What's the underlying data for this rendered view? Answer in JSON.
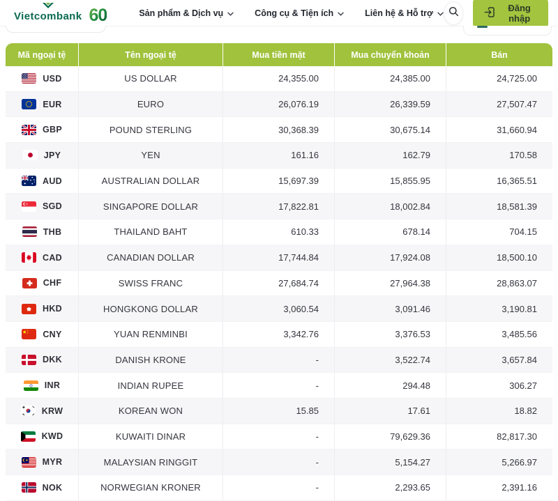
{
  "header": {
    "logo_text": "Vietcombank",
    "anniversary_badge": "60",
    "nav_items": [
      {
        "label": "Sản phẩm & Dịch vụ"
      },
      {
        "label": "Công cụ & Tiện ích"
      },
      {
        "label": "Liên hệ & Hỗ trợ"
      }
    ],
    "login_label": "Đăng nhập"
  },
  "colors": {
    "brand_green": "#a0c23c",
    "button_green": "#a3c43e",
    "logo_green": "#0b6a4f",
    "accent_teal": "#2e6b5f",
    "row_alt": "#f6f6f8"
  },
  "table": {
    "columns": [
      "Mã ngoại tệ",
      "Tên ngoại tệ",
      "Mua tiền mặt",
      "Mua chuyển khoản",
      "Bán"
    ],
    "rows": [
      {
        "code": "USD",
        "flag": "us-flag",
        "name": "US DOLLAR",
        "cash": "24,355.00",
        "transfer": "24,385.00",
        "sell": "24,725.00"
      },
      {
        "code": "EUR",
        "flag": "eu-flag",
        "name": "EURO",
        "cash": "26,076.19",
        "transfer": "26,339.59",
        "sell": "27,507.47"
      },
      {
        "code": "GBP",
        "flag": "gb-flag",
        "name": "POUND STERLING",
        "cash": "30,368.39",
        "transfer": "30,675.14",
        "sell": "31,660.94"
      },
      {
        "code": "JPY",
        "flag": "jp-flag",
        "name": "YEN",
        "cash": "161.16",
        "transfer": "162.79",
        "sell": "170.58"
      },
      {
        "code": "AUD",
        "flag": "au-flag",
        "name": "AUSTRALIAN DOLLAR",
        "cash": "15,697.39",
        "transfer": "15,855.95",
        "sell": "16,365.51"
      },
      {
        "code": "SGD",
        "flag": "sg-flag",
        "name": "SINGAPORE DOLLAR",
        "cash": "17,822.81",
        "transfer": "18,002.84",
        "sell": "18,581.39"
      },
      {
        "code": "THB",
        "flag": "th-flag",
        "name": "THAILAND BAHT",
        "cash": "610.33",
        "transfer": "678.14",
        "sell": "704.15"
      },
      {
        "code": "CAD",
        "flag": "ca-flag",
        "name": "CANADIAN DOLLAR",
        "cash": "17,744.84",
        "transfer": "17,924.08",
        "sell": "18,500.10"
      },
      {
        "code": "CHF",
        "flag": "ch-flag",
        "name": "SWISS FRANC",
        "cash": "27,684.74",
        "transfer": "27,964.38",
        "sell": "28,863.07"
      },
      {
        "code": "HKD",
        "flag": "hk-flag",
        "name": "HONGKONG DOLLAR",
        "cash": "3,060.54",
        "transfer": "3,091.46",
        "sell": "3,190.81"
      },
      {
        "code": "CNY",
        "flag": "cn-flag",
        "name": "YUAN RENMINBI",
        "cash": "3,342.76",
        "transfer": "3,376.53",
        "sell": "3,485.56"
      },
      {
        "code": "DKK",
        "flag": "dk-flag",
        "name": "DANISH KRONE",
        "cash": "-",
        "transfer": "3,522.74",
        "sell": "3,657.84"
      },
      {
        "code": "INR",
        "flag": "in-flag",
        "name": "INDIAN RUPEE",
        "cash": "-",
        "transfer": "294.48",
        "sell": "306.27"
      },
      {
        "code": "KRW",
        "flag": "kr-flag",
        "name": "KOREAN WON",
        "cash": "15.85",
        "transfer": "17.61",
        "sell": "18.82"
      },
      {
        "code": "KWD",
        "flag": "kw-flag",
        "name": "KUWAITI DINAR",
        "cash": "-",
        "transfer": "79,629.36",
        "sell": "82,817.30"
      },
      {
        "code": "MYR",
        "flag": "my-flag",
        "name": "MALAYSIAN RINGGIT",
        "cash": "-",
        "transfer": "5,154.27",
        "sell": "5,266.97"
      },
      {
        "code": "NOK",
        "flag": "no-flag",
        "name": "NORWEGIAN KRONER",
        "cash": "-",
        "transfer": "2,293.65",
        "sell": "2,391.16"
      }
    ]
  }
}
